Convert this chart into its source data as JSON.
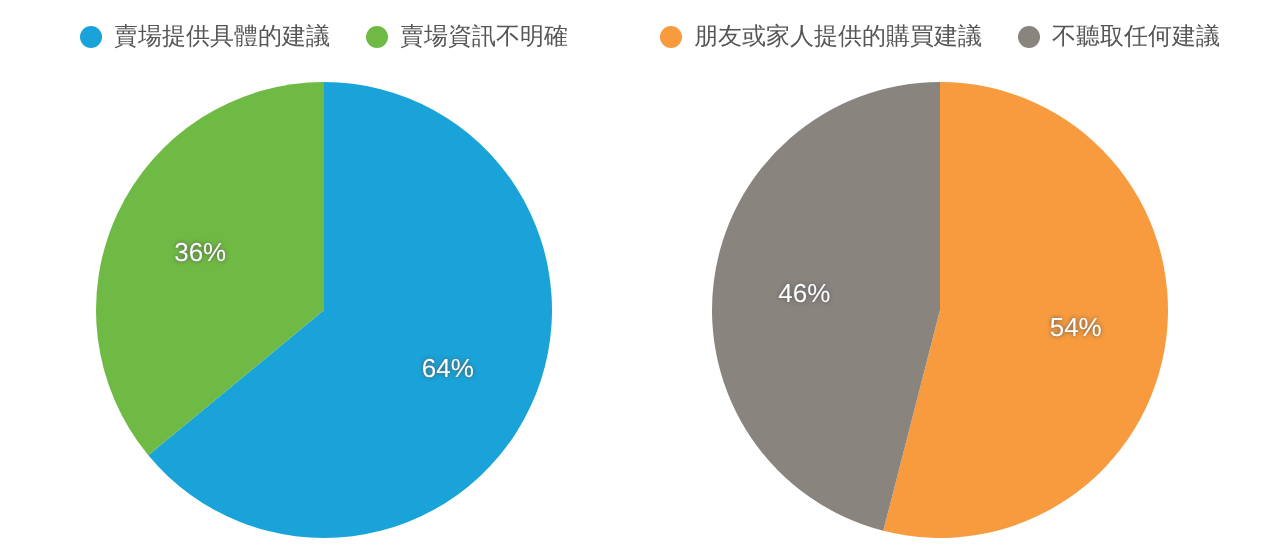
{
  "chart_data": [
    {
      "type": "pie",
      "categories": [
        "賣場提供具體的建議",
        "賣場資訊不明確"
      ],
      "values": [
        64,
        36
      ],
      "colors": [
        "#1aa3d8",
        "#6fba44"
      ],
      "value_labels": [
        "64%",
        "36%"
      ],
      "legend": "top"
    },
    {
      "type": "pie",
      "categories": [
        "朋友或家人提供的購買建議",
        "不聽取任何建議"
      ],
      "values": [
        54,
        46
      ],
      "colors": [
        "#f79b3e",
        "#8a847f"
      ],
      "value_labels": [
        "54%",
        "46%"
      ],
      "legend": "top"
    }
  ]
}
